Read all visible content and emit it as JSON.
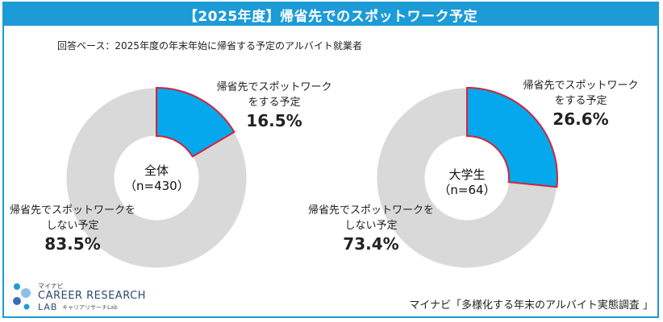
{
  "header": {
    "title": "【2025年度】帰省先でのスポットワーク予定"
  },
  "basis": "回答ベース：2025年度の年末年始に帰省する予定のアルバイト就業者",
  "chart_data": [
    {
      "type": "pie",
      "variant": "donut",
      "center_label": "全体",
      "center_n": "（n=430）",
      "slices": [
        {
          "label_line1": "帰省先でスポットワーク",
          "label_line2": "をする予定",
          "value_text": "16.5%",
          "value": 16.5,
          "color": "#05a8ec",
          "stroke": "#d2243c"
        },
        {
          "label_line1": "帰省先でスポットワークを",
          "label_line2": "しない予定",
          "value_text": "83.5%",
          "value": 83.5,
          "color": "#d9d9d9",
          "stroke": "#ffffff"
        }
      ]
    },
    {
      "type": "pie",
      "variant": "donut",
      "center_label": "大学生",
      "center_n": "（n=64）",
      "slices": [
        {
          "label_line1": "帰省先でスポットワーク",
          "label_line2": "をする予定",
          "value_text": "26.6%",
          "value": 26.6,
          "color": "#05a8ec",
          "stroke": "#d2243c"
        },
        {
          "label_line1": "帰省先でスポットワークを",
          "label_line2": "しない予定",
          "value_text": "73.4%",
          "value": 73.4,
          "color": "#d9d9d9",
          "stroke": "#ffffff"
        }
      ]
    }
  ],
  "logo": {
    "top": "マイナビ",
    "main": "CAREER RESEARCH",
    "lab": "LAB",
    "sub": "キャリアリサーチLab"
  },
  "source": "マイナビ「多様化する年末のアルバイト実態調査 」",
  "colors": {
    "accent": "#1c9bd6",
    "slice_yes": "#05a8ec",
    "slice_no": "#d9d9d9",
    "outline": "#d2243c"
  }
}
